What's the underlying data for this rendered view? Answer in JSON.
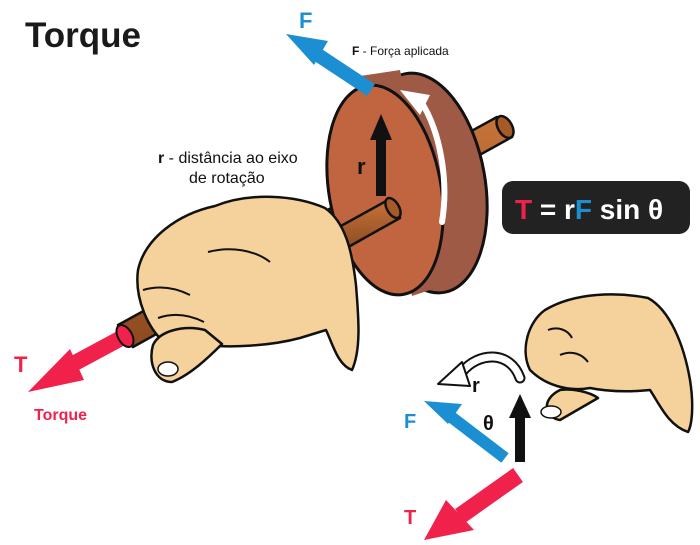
{
  "title": "Torque",
  "force": {
    "symbol": "F",
    "label_symbol": "F",
    "label_text": " - Força aplicada"
  },
  "radius": {
    "symbol": "r",
    "label_line1_symbol": "r",
    "label_line1_text": " - distância ao eixo",
    "label_line2": "de rotação"
  },
  "torque": {
    "symbol": "T",
    "label": "Torque"
  },
  "formula": {
    "t": "T",
    "eq": " = r",
    "f": "F",
    "rest": " sin θ"
  },
  "diagram2": {
    "force": "F",
    "radius": "r",
    "angle": "θ",
    "torque": "T"
  },
  "colors": {
    "torque": "#f0224b",
    "force": "#1c8fd2",
    "formula_bg": "#222222",
    "wheel_face": "#c0653f",
    "wheel_rim": "#9e5a45",
    "axle": "#a65a28",
    "skin": "#f5d29b",
    "outline": "#111111"
  }
}
